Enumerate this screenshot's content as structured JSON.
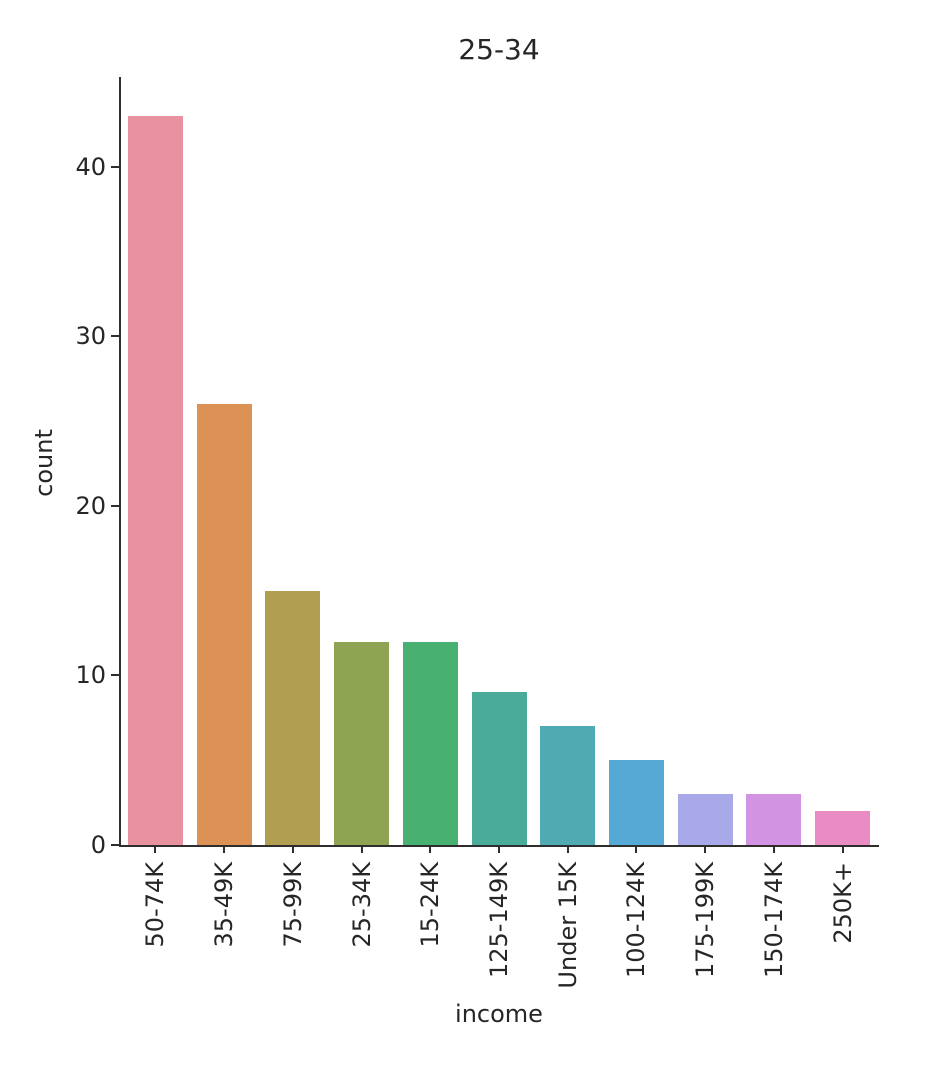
{
  "chart_data": {
    "type": "bar",
    "title": "25-34",
    "xlabel": "income",
    "ylabel": "count",
    "categories": [
      "50-74K",
      "35-49K",
      "75-99K",
      "25-34K",
      "15-24K",
      "125-149K",
      "Under 15K",
      "100-124K",
      "175-199K",
      "150-174K",
      "250K+"
    ],
    "values": [
      43,
      26,
      15,
      12,
      12,
      9,
      7,
      5,
      3,
      3,
      2
    ],
    "bar_colors": [
      "#e8919f",
      "#dc9255",
      "#b29e50",
      "#8ea452",
      "#48b071",
      "#49ac98",
      "#4fabb1",
      "#56a9d5",
      "#a9a8e8",
      "#d393e3",
      "#e88cc3"
    ],
    "yticks": [
      0,
      10,
      20,
      30,
      40
    ],
    "ylim": [
      0,
      45.3
    ],
    "x_tick_rotation": 90,
    "bar_width_fraction": 0.8,
    "grid": false,
    "legend_position": "none",
    "axis_color": "#2e2e2e",
    "text_color": "#262626",
    "background_color": "#ffffff"
  }
}
